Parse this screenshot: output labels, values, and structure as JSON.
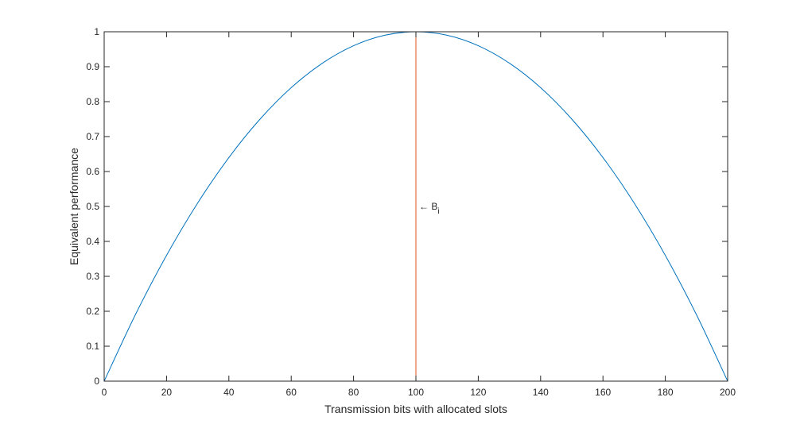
{
  "chart_data": {
    "type": "line",
    "title": "",
    "xlabel": "Transmission bits with allocated slots",
    "ylabel": "Equivalent performance",
    "xlim": [
      0,
      200
    ],
    "ylim": [
      0,
      1
    ],
    "xticks": [
      0,
      20,
      40,
      60,
      80,
      100,
      120,
      140,
      160,
      180,
      200
    ],
    "yticks": [
      0,
      0.1,
      0.2,
      0.3,
      0.4,
      0.5,
      0.6,
      0.7,
      0.8,
      0.9,
      1
    ],
    "xtick_labels": [
      "0",
      "20",
      "40",
      "60",
      "80",
      "100",
      "120",
      "140",
      "160",
      "180",
      "200"
    ],
    "ytick_labels": [
      "0",
      "0.1",
      "0.2",
      "0.3",
      "0.4",
      "0.5",
      "0.6",
      "0.7",
      "0.8",
      "0.9",
      "1"
    ],
    "grid": false,
    "series": [
      {
        "color": "#0072BD",
        "x": [
          0,
          10,
          20,
          30,
          40,
          50,
          60,
          70,
          80,
          90,
          100,
          110,
          120,
          130,
          140,
          150,
          160,
          170,
          180,
          190,
          200
        ],
        "y": [
          0,
          0.19,
          0.36,
          0.51,
          0.64,
          0.75,
          0.84,
          0.91,
          0.96,
          0.99,
          1,
          0.99,
          0.96,
          0.91,
          0.84,
          0.75,
          0.64,
          0.51,
          0.36,
          0.19,
          0
        ]
      },
      {
        "color": "#D95319",
        "x": [
          100,
          100
        ],
        "y": [
          0,
          1
        ]
      }
    ],
    "annotations": [
      {
        "arrow": "←",
        "text": "B",
        "subscript": "i",
        "x": 100,
        "y": 0.5
      }
    ]
  }
}
